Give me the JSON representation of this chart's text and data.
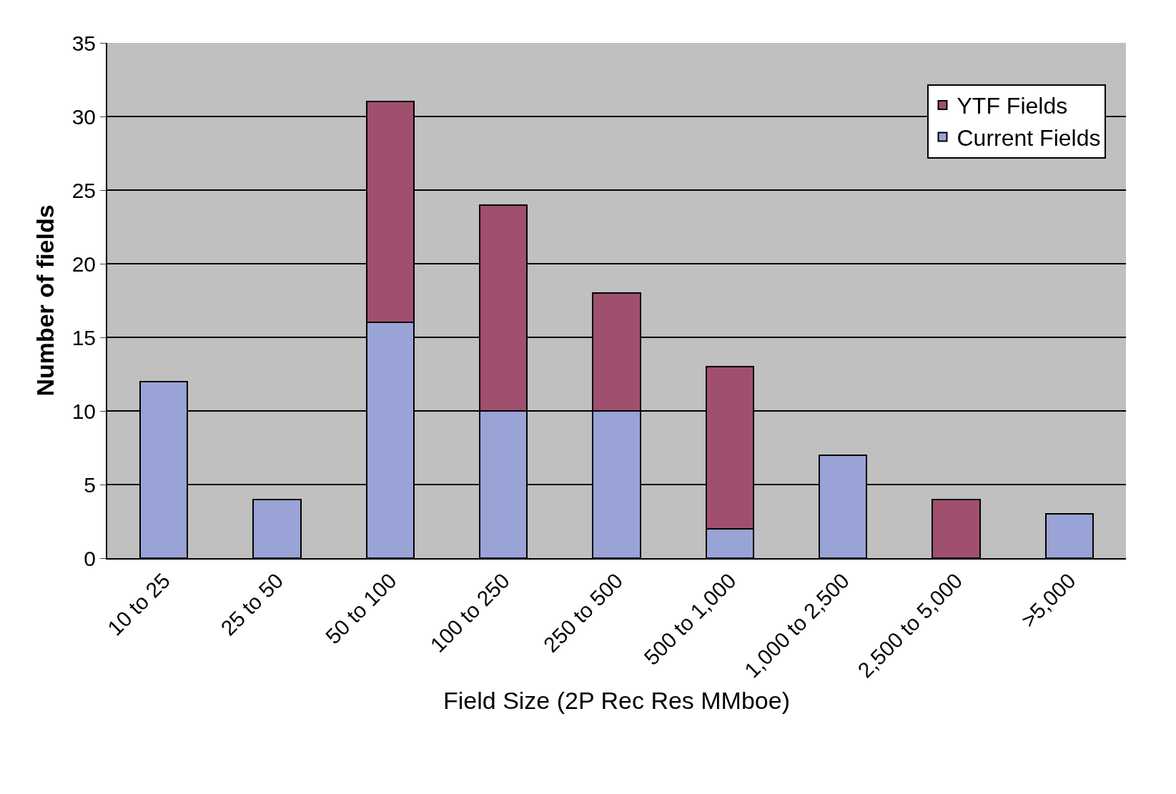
{
  "chart_data": {
    "type": "bar",
    "stacked": true,
    "xlabel": "Field Size (2P Rec Res MMboe)",
    "ylabel": "Number of fields",
    "categories": [
      "10 to 25",
      "25 to 50",
      "50 to 100",
      "100 to 250",
      "250 to 500",
      "500 to 1,000",
      "1,000 to 2,500",
      "2,500 to 5,000",
      ">5,000"
    ],
    "series": [
      {
        "name": "Current Fields",
        "color": "#9aa3d6",
        "values": [
          12,
          4,
          16,
          10,
          10,
          2,
          7,
          null,
          3
        ]
      },
      {
        "name": "YTF Fields",
        "color": "#a0506e",
        "values": [
          null,
          null,
          15,
          14,
          8,
          11,
          null,
          4,
          null
        ]
      }
    ],
    "ylim": [
      0,
      35
    ],
    "yticks": [
      0,
      5,
      10,
      15,
      20,
      25,
      30,
      35
    ],
    "grid": "y",
    "legend": "top right"
  }
}
